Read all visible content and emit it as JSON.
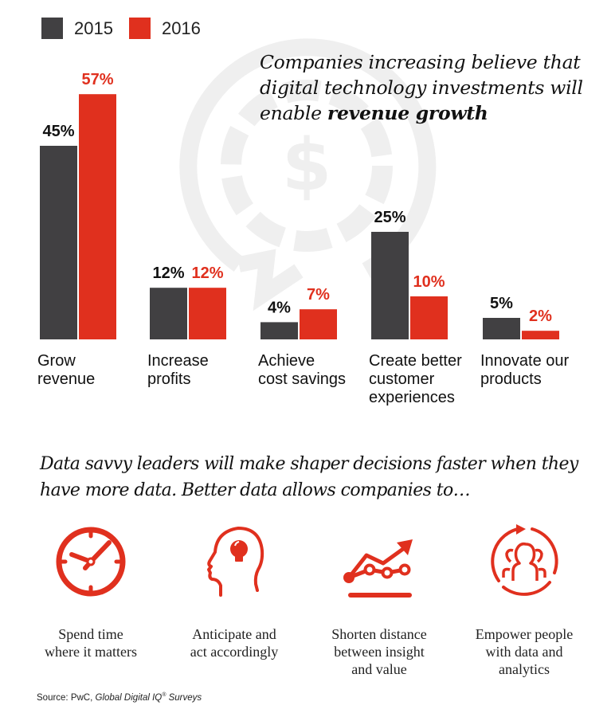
{
  "legend": [
    {
      "label": "2015",
      "color": "#414042"
    },
    {
      "label": "2016",
      "color": "#e0301e"
    }
  ],
  "headline": {
    "prefix": "Companies increasing believe that digital technology investments will enable ",
    "emphasis": "revenue growth"
  },
  "chart_data": {
    "type": "bar",
    "title": "Companies increasing believe that digital technology investments will enable revenue growth",
    "xlabel": "",
    "ylabel": "",
    "ylim": [
      0,
      60
    ],
    "grid": false,
    "legend_position": "top-left",
    "categories": [
      "Grow revenue",
      "Increase profits",
      "Achieve cost savings",
      "Create better customer experiences",
      "Innovate our products"
    ],
    "category_lines": [
      [
        "Grow",
        "revenue"
      ],
      [
        "Increase",
        "profits"
      ],
      [
        "Achieve",
        "cost savings"
      ],
      [
        "Create better",
        "customer",
        "experiences"
      ],
      [
        "Innovate our",
        "products"
      ]
    ],
    "series": [
      {
        "name": "2015",
        "color": "#414042",
        "label_color": "#111111",
        "values": [
          45,
          12,
          4,
          25,
          5
        ],
        "labels": [
          "45%",
          "12%",
          "4%",
          "25%",
          "5%"
        ]
      },
      {
        "name": "2016",
        "color": "#e0301e",
        "label_color": "#e0301e",
        "values": [
          57,
          12,
          7,
          10,
          2
        ],
        "labels": [
          "57%",
          "12%",
          "7%",
          "10%",
          "2%"
        ]
      }
    ]
  },
  "subhead": "Data savvy leaders will make shaper decisions faster when they have more data. Better data allows companies to…",
  "features": [
    {
      "icon": "clock-icon",
      "lines": [
        "Spend time",
        "where it matters"
      ]
    },
    {
      "icon": "head-lightbulb-icon",
      "lines": [
        "Anticipate and",
        "act accordingly"
      ]
    },
    {
      "icon": "trend-chart-icon",
      "lines": [
        "Shorten distance",
        "between insight",
        "and value"
      ]
    },
    {
      "icon": "people-cycle-icon",
      "lines": [
        "Empower people",
        "with data and",
        "analytics"
      ]
    }
  ],
  "source": {
    "prefix": "Source: PwC, ",
    "title": "Global Digital IQ",
    "reg": "®",
    "suffix": " Surveys"
  },
  "accent_color": "#e0301e"
}
